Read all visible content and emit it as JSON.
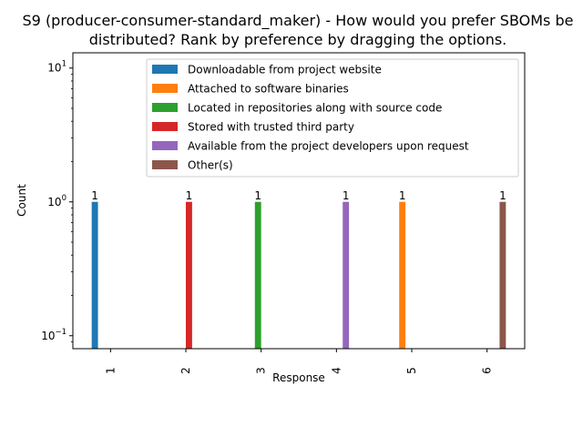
{
  "chart_data": {
    "type": "bar",
    "title_line1": "S9 (producer-consumer-standard_maker) - How would you prefer SBOMs be",
    "title_line2": "distributed? Rank by preference by dragging the options.",
    "xlabel": "Response",
    "ylabel": "Count",
    "yscale": "log",
    "ylim": [
      0.08,
      13
    ],
    "categories": [
      "1",
      "2",
      "3",
      "4",
      "5",
      "6"
    ],
    "y_ticks": [
      {
        "value": 10,
        "base": "10",
        "exp": "1"
      },
      {
        "value": 1,
        "base": "10",
        "exp": "0"
      },
      {
        "value": 0.1,
        "base": "10",
        "exp": "−1"
      }
    ],
    "legend_position": "upper-center",
    "series": [
      {
        "name": "Downloadable from project website",
        "color": "#1f77b4",
        "values": [
          1,
          0,
          0,
          0,
          0,
          0
        ]
      },
      {
        "name": "Attached to software binaries",
        "color": "#ff7f0e",
        "values": [
          0,
          0,
          0,
          0,
          1,
          0
        ]
      },
      {
        "name": "Located in repositories along with source code",
        "color": "#2ca02c",
        "values": [
          0,
          0,
          1,
          0,
          0,
          0
        ]
      },
      {
        "name": "Stored with trusted third party",
        "color": "#d62728",
        "values": [
          0,
          1,
          0,
          0,
          0,
          0
        ]
      },
      {
        "name": "Available from the project developers upon request",
        "color": "#9467bd",
        "values": [
          0,
          0,
          0,
          1,
          0,
          0
        ]
      },
      {
        "name": "Other(s)",
        "color": "#8c564b",
        "values": [
          0,
          0,
          0,
          0,
          0,
          1
        ]
      }
    ]
  }
}
